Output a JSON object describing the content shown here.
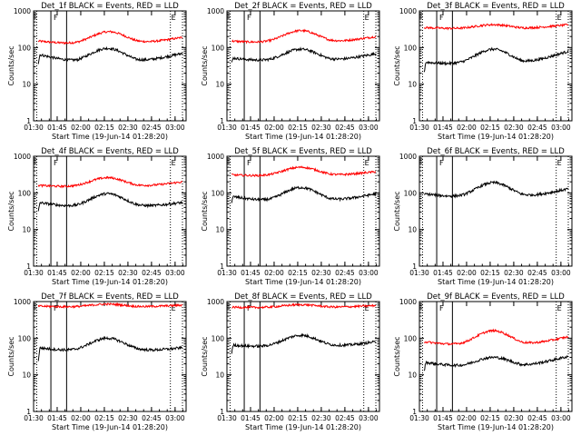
{
  "figure": {
    "xlabel": "Start Time (19-Jun-14 01:28:20)",
    "ylabel": "Counts/sec",
    "x_ticks": [
      "01:30",
      "01:45",
      "02:00",
      "02:15",
      "02:30",
      "02:45",
      "03:00"
    ],
    "y_ticks": [
      "1",
      "10",
      "100",
      "1000"
    ],
    "colors": {
      "events": "#000000",
      "lld": "#ff0000"
    }
  },
  "chart_data": [
    {
      "type": "line",
      "title": "Det_1f BLACK = Events, RED = LLD",
      "xlabel": "Start Time (19-Jun-14 01:28:20)",
      "ylabel": "Counts/sec",
      "x_range": [
        "01:30",
        "03:07"
      ],
      "y_scale": "log",
      "ylim": [
        1,
        1000
      ],
      "markers": [
        "E",
        "F",
        "E"
      ],
      "series": [
        {
          "color": "#ff0000",
          "start": 150,
          "trough_min": 120,
          "peak": 270,
          "peak_time": "02:18",
          "end": 190
        },
        {
          "color": "#000000",
          "start": 38,
          "first_max": 65,
          "trough_min": 37,
          "peak": 95,
          "peak_time": "02:17",
          "end": 70
        }
      ]
    },
    {
      "type": "line",
      "title": "Det_2f BLACK = Events, RED = LLD",
      "xlabel": "Start Time (19-Jun-14 01:28:20)",
      "ylabel": "Counts/sec",
      "x_range": [
        "01:30",
        "03:07"
      ],
      "y_scale": "log",
      "ylim": [
        1,
        1000
      ],
      "markers": [
        "E",
        "F",
        "E"
      ],
      "series": [
        {
          "color": "#ff0000",
          "start": 150,
          "trough_min": 130,
          "peak": 290,
          "peak_time": "02:17",
          "end": 200
        },
        {
          "color": "#000000",
          "start": 38,
          "first_max": 52,
          "trough_min": 40,
          "peak": 90,
          "peak_time": "02:17",
          "end": 68
        }
      ]
    },
    {
      "type": "line",
      "title": "Det_3f BLACK = Events, RED = LLD",
      "xlabel": "Start Time (19-Jun-14 01:28:20)",
      "ylabel": "Counts/sec",
      "x_range": [
        "01:30",
        "03:07"
      ],
      "y_scale": "log",
      "ylim": [
        1,
        1000
      ],
      "markers": [
        "E",
        "F",
        "E"
      ],
      "series": [
        {
          "color": "#ff0000",
          "start": 350,
          "trough_min": 320,
          "peak": 420,
          "peak_time": "02:17",
          "end": 420
        },
        {
          "color": "#000000",
          "start": 20,
          "first_max": 40,
          "trough_min": 33,
          "peak": 90,
          "peak_time": "02:17",
          "end": 80
        }
      ]
    },
    {
      "type": "line",
      "title": "Det_4f BLACK = Events, RED = LLD",
      "xlabel": "Start Time (19-Jun-14 01:28:20)",
      "ylabel": "Counts/sec",
      "x_range": [
        "01:30",
        "03:07"
      ],
      "y_scale": "log",
      "ylim": [
        1,
        1000
      ],
      "markers": [
        "E",
        "F",
        "E"
      ],
      "series": [
        {
          "color": "#ff0000",
          "start": 160,
          "trough_min": 140,
          "peak": 260,
          "peak_time": "02:17",
          "end": 200
        },
        {
          "color": "#000000",
          "start": 30,
          "first_max": 55,
          "trough_min": 38,
          "peak": 95,
          "peak_time": "02:17",
          "end": 55
        }
      ]
    },
    {
      "type": "line",
      "title": "Det_5f BLACK = Events, RED = LLD",
      "xlabel": "Start Time (19-Jun-14 01:28:20)",
      "ylabel": "Counts/sec",
      "x_range": [
        "01:30",
        "03:07"
      ],
      "y_scale": "log",
      "ylim": [
        1,
        1000
      ],
      "markers": [
        "E",
        "F",
        "E"
      ],
      "series": [
        {
          "color": "#ff0000",
          "start": 310,
          "trough_min": 280,
          "peak": 500,
          "peak_time": "02:17",
          "end": 380
        },
        {
          "color": "#000000",
          "start": 55,
          "first_max": 80,
          "trough_min": 55,
          "peak": 140,
          "peak_time": "02:17",
          "end": 95
        }
      ]
    },
    {
      "type": "line",
      "title": "Det_6f BLACK = Events, RED = LLD",
      "xlabel": "Start Time (19-Jun-14 01:28:20)",
      "ylabel": "Counts/sec",
      "x_range": [
        "01:30",
        "03:07"
      ],
      "y_scale": "log",
      "ylim": [
        1,
        1000
      ],
      "markers": [
        "E",
        "F",
        "E"
      ],
      "series": [
        {
          "color": "#000000",
          "start": 85,
          "first_max": 95,
          "trough_min": 70,
          "peak": 190,
          "peak_time": "02:17",
          "end": 130
        }
      ]
    },
    {
      "type": "line",
      "title": "Det_7f BLACK = Events, RED = LLD",
      "xlabel": "Start Time (19-Jun-14 01:28:20)",
      "ylabel": "Counts/sec",
      "x_range": [
        "01:30",
        "03:07"
      ],
      "y_scale": "log",
      "ylim": [
        1,
        1000
      ],
      "markers": [
        "E",
        "F",
        "E"
      ],
      "series": [
        {
          "color": "#ff0000",
          "start": 750,
          "trough_min": 700,
          "peak": 850,
          "peak_time": "02:17",
          "end": 800
        },
        {
          "color": "#000000",
          "start": 25,
          "first_max": 55,
          "trough_min": 42,
          "peak": 100,
          "peak_time": "02:17",
          "end": 55
        }
      ]
    },
    {
      "type": "line",
      "title": "Det_8f BLACK = Events, RED = LLD",
      "xlabel": "Start Time (19-Jun-14 01:28:20)",
      "ylabel": "Counts/sec",
      "x_range": [
        "01:30",
        "03:07"
      ],
      "y_scale": "log",
      "ylim": [
        1,
        1000
      ],
      "markers": [
        "E",
        "F",
        "E"
      ],
      "series": [
        {
          "color": "#ff0000",
          "start": 700,
          "trough_min": 680,
          "peak": 820,
          "peak_time": "02:17",
          "end": 780
        },
        {
          "color": "#000000",
          "start": 40,
          "first_max": 65,
          "trough_min": 55,
          "peak": 120,
          "peak_time": "02:17",
          "end": 80
        }
      ]
    },
    {
      "type": "line",
      "title": "Det_9f BLACK = Events, RED = LLD",
      "xlabel": "Start Time (19-Jun-14 01:28:20)",
      "ylabel": "Counts/sec",
      "x_range": [
        "01:30",
        "03:07"
      ],
      "y_scale": "log",
      "ylim": [
        1,
        1000
      ],
      "markers": [
        "E",
        "F",
        "E"
      ],
      "series": [
        {
          "color": "#ff0000",
          "start": 80,
          "trough_min": 60,
          "peak": 160,
          "peak_time": "02:17",
          "end": 110
        },
        {
          "color": "#000000",
          "start": 12,
          "first_max": 22,
          "trough_min": 16,
          "peak": 30,
          "peak_time": "02:17",
          "end": 32
        }
      ]
    }
  ]
}
